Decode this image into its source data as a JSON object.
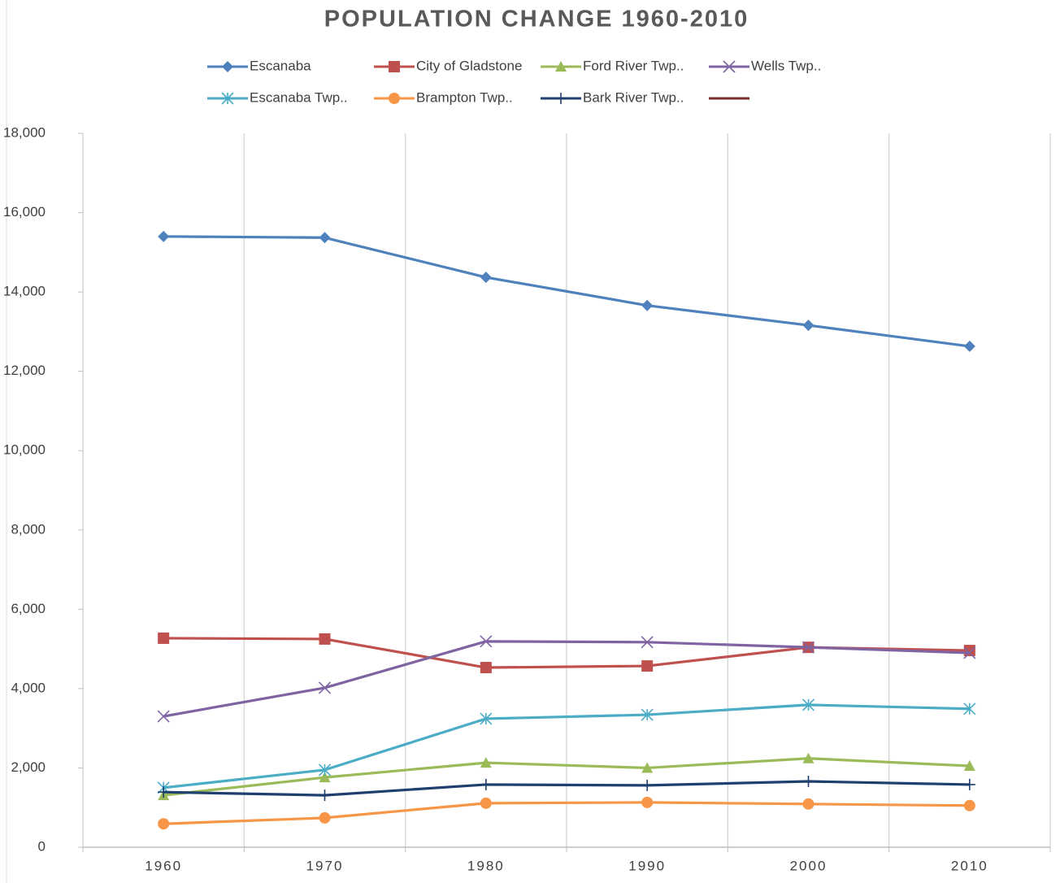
{
  "chart_data": {
    "type": "line",
    "title": "POPULATION CHANGE 1960-2010",
    "categories": [
      "1960",
      "1970",
      "1980",
      "1990",
      "2000",
      "2010"
    ],
    "ylim": [
      0,
      18000
    ],
    "yticks": [
      0,
      {
        "value": 2000,
        "label": "2,000"
      },
      {
        "value": 4000,
        "label": "4,000"
      },
      {
        "value": 6000,
        "label": "6,000"
      },
      {
        "value": 8000,
        "label": "8,000"
      },
      {
        "value": 10000,
        "label": "10,000"
      },
      {
        "value": 12000,
        "label": "12,000"
      },
      {
        "value": 14000,
        "label": "14,000"
      },
      {
        "value": 16000,
        "label": "16,000"
      },
      {
        "value": 18000,
        "label": "18,000"
      }
    ],
    "grid": "x",
    "series": [
      {
        "name": "Escanaba",
        "color": "#4f81bd",
        "marker": "diamond",
        "values": [
          15400,
          15370,
          14370,
          13660,
          13160,
          12630
        ]
      },
      {
        "name": "City of Gladstone",
        "color": "#c0504d",
        "marker": "square",
        "values": [
          5270,
          5250,
          4530,
          4570,
          5040,
          4960
        ]
      },
      {
        "name": "Ford River Twp..",
        "color": "#9bbb59",
        "marker": "triangle",
        "values": [
          1310,
          1760,
          2130,
          2000,
          2240,
          2050
        ]
      },
      {
        "name": "Wells Twp..",
        "color": "#8064a2",
        "marker": "x",
        "values": [
          3300,
          4020,
          5190,
          5170,
          5040,
          4900
        ]
      },
      {
        "name": "Escanaba Twp..",
        "color": "#4bacc6",
        "marker": "star",
        "values": [
          1500,
          1950,
          3240,
          3340,
          3590,
          3490
        ]
      },
      {
        "name": "Brampton Twp..",
        "color": "#f79646",
        "marker": "circle",
        "values": [
          590,
          740,
          1110,
          1130,
          1090,
          1050
        ]
      },
      {
        "name": "Bark River Twp..",
        "color": "#1f3f6e",
        "marker": "plus",
        "values": [
          1390,
          1310,
          1580,
          1560,
          1660,
          1580
        ]
      },
      {
        "color": "#772c2a",
        "marker": "dash",
        "values": [
          null,
          null,
          null,
          null,
          null,
          null
        ]
      }
    ]
  }
}
